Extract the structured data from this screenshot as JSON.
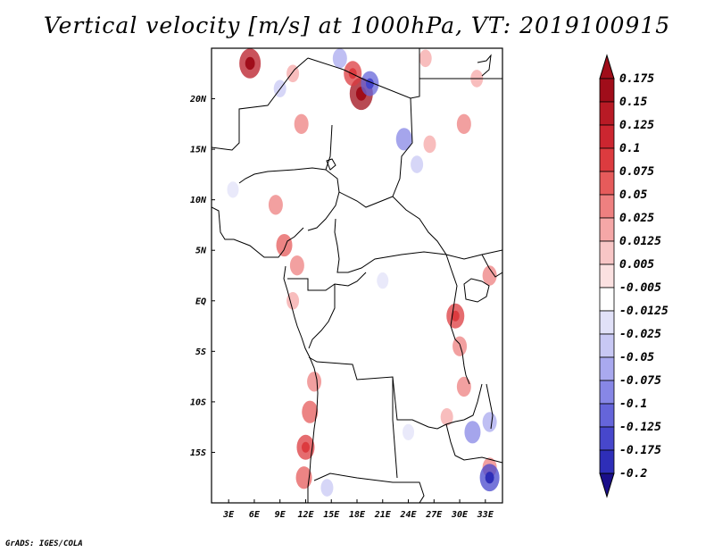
{
  "title": "Vertical velocity [m/s] at 1000hPa, VT: 2019100915",
  "footer": "GrADS: IGES/COLA",
  "map": {
    "lon_range": [
      1,
      35
    ],
    "lat_range": [
      -20,
      25
    ],
    "lon_ticks": [
      {
        "value": 3,
        "label": "3E"
      },
      {
        "value": 6,
        "label": "6E"
      },
      {
        "value": 9,
        "label": "9E"
      },
      {
        "value": 12,
        "label": "12E"
      },
      {
        "value": 15,
        "label": "15E"
      },
      {
        "value": 18,
        "label": "18E"
      },
      {
        "value": 21,
        "label": "21E"
      },
      {
        "value": 24,
        "label": "24E"
      },
      {
        "value": 27,
        "label": "27E"
      },
      {
        "value": 30,
        "label": "30E"
      },
      {
        "value": 33,
        "label": "33E"
      }
    ],
    "lat_ticks": [
      {
        "value": 20,
        "label": "20N"
      },
      {
        "value": 15,
        "label": "15N"
      },
      {
        "value": 10,
        "label": "10N"
      },
      {
        "value": 5,
        "label": "5N"
      },
      {
        "value": 0,
        "label": "EQ"
      },
      {
        "value": -5,
        "label": "5S"
      },
      {
        "value": -10,
        "label": "10S"
      },
      {
        "value": -15,
        "label": "15S"
      }
    ],
    "patches": [
      {
        "lon": 5.5,
        "lat": 23.5,
        "level": 0.15
      },
      {
        "lon": 18.5,
        "lat": 20.5,
        "level": 0.175
      },
      {
        "lon": 17.5,
        "lat": 22.5,
        "level": 0.1
      },
      {
        "lon": 11.5,
        "lat": 17.5,
        "level": 0.05
      },
      {
        "lon": 10.5,
        "lat": 22.5,
        "level": 0.025
      },
      {
        "lon": 8.5,
        "lat": 9.5,
        "level": 0.05
      },
      {
        "lon": 9.5,
        "lat": 5.5,
        "level": 0.075
      },
      {
        "lon": 11.0,
        "lat": 3.5,
        "level": 0.05
      },
      {
        "lon": 10.5,
        "lat": 0.0,
        "level": 0.025
      },
      {
        "lon": 13.0,
        "lat": -8.0,
        "level": 0.05
      },
      {
        "lon": 12.5,
        "lat": -11.0,
        "level": 0.075
      },
      {
        "lon": 12.0,
        "lat": -14.5,
        "level": 0.1
      },
      {
        "lon": 11.8,
        "lat": -17.5,
        "level": 0.075
      },
      {
        "lon": 29.5,
        "lat": -1.5,
        "level": 0.1
      },
      {
        "lon": 30.0,
        "lat": -4.5,
        "level": 0.05
      },
      {
        "lon": 30.5,
        "lat": -8.5,
        "level": 0.05
      },
      {
        "lon": 28.5,
        "lat": -11.5,
        "level": 0.025
      },
      {
        "lon": 33.5,
        "lat": 2.5,
        "level": 0.05
      },
      {
        "lon": 32.0,
        "lat": 22.0,
        "level": 0.025
      },
      {
        "lon": 30.5,
        "lat": 17.5,
        "level": 0.05
      },
      {
        "lon": 26.5,
        "lat": 15.5,
        "level": 0.025
      },
      {
        "lon": 33.5,
        "lat": -16.5,
        "level": 0.05
      },
      {
        "lon": 16.0,
        "lat": 24.0,
        "level": -0.05
      },
      {
        "lon": 19.5,
        "lat": 21.5,
        "level": -0.1
      },
      {
        "lon": 23.5,
        "lat": 16.0,
        "level": -0.075
      },
      {
        "lon": 25.0,
        "lat": 13.5,
        "level": -0.025
      },
      {
        "lon": 31.5,
        "lat": -13.0,
        "level": -0.075
      },
      {
        "lon": 33.5,
        "lat": -12.0,
        "level": -0.05
      },
      {
        "lon": 33.5,
        "lat": -17.5,
        "level": -0.125
      },
      {
        "lon": 14.5,
        "lat": -18.5,
        "level": -0.025
      },
      {
        "lon": 9.0,
        "lat": 21.0,
        "level": -0.025
      },
      {
        "lon": 3.5,
        "lat": 11.0,
        "level": -0.0125
      },
      {
        "lon": 21.0,
        "lat": 2.0,
        "level": -0.0125
      },
      {
        "lon": 24.0,
        "lat": -13.0,
        "level": -0.0125
      },
      {
        "lon": 26.0,
        "lat": 24.0,
        "level": 0.025
      }
    ]
  },
  "colorbar": {
    "levels": [
      {
        "label": "0.175",
        "color": "#a00d1a"
      },
      {
        "label": "0.15",
        "color": "#b81a25"
      },
      {
        "label": "0.125",
        "color": "#cc2630"
      },
      {
        "label": "0.1",
        "color": "#dc3b3f"
      },
      {
        "label": "0.075",
        "color": "#e65b5b"
      },
      {
        "label": "0.05",
        "color": "#ee8080"
      },
      {
        "label": "0.025",
        "color": "#f5a7a7"
      },
      {
        "label": "0.0125",
        "color": "#f8c6c6"
      },
      {
        "label": "0.005",
        "color": "#fbe1e1"
      },
      {
        "label": "-0.005",
        "color": "#ffffff"
      },
      {
        "label": "-0.0125",
        "color": "#e1e1f8"
      },
      {
        "label": "-0.025",
        "color": "#c8c8f4"
      },
      {
        "label": "-0.05",
        "color": "#a9a9ef"
      },
      {
        "label": "-0.075",
        "color": "#8787e6"
      },
      {
        "label": "-0.1",
        "color": "#6565da"
      },
      {
        "label": "-0.125",
        "color": "#4747cc"
      },
      {
        "label": "-0.175",
        "color": "#2e2eb8"
      },
      {
        "label": "-0.2",
        "color": "#1d1da0"
      }
    ],
    "bottom_color": "#1a0f8a",
    "top_color": "#a00d1a"
  }
}
